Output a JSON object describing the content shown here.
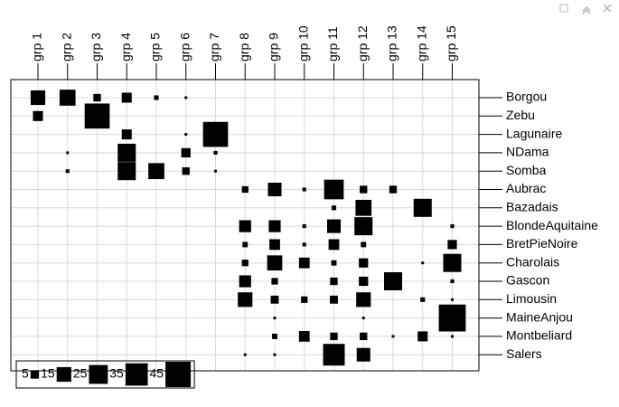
{
  "chart_data": {
    "type": "table_value",
    "columns": [
      "grp 1",
      "grp 2",
      "grp 3",
      "grp 4",
      "grp 5",
      "grp 6",
      "grp 7",
      "grp 8",
      "grp 9",
      "grp 10",
      "grp 11",
      "grp 12",
      "grp 13",
      "grp 14",
      "grp 15"
    ],
    "rows": [
      "Borgou",
      "Zebu",
      "Lagunaire",
      "NDama",
      "Somba",
      "Aubrac",
      "Bazadais",
      "BlondeAquitaine",
      "BretPieNoire",
      "Charolais",
      "Gascon",
      "Limousin",
      "MaineAnjou",
      "Montbeliard",
      "Salers"
    ],
    "values": [
      [
        15,
        18,
        4,
        7,
        1.5,
        0.5,
        null,
        null,
        null,
        null,
        null,
        null,
        null,
        null,
        null
      ],
      [
        7,
        null,
        44,
        null,
        null,
        null,
        null,
        null,
        null,
        null,
        null,
        null,
        null,
        null,
        null
      ],
      [
        null,
        null,
        null,
        7,
        null,
        0.5,
        44,
        null,
        null,
        null,
        null,
        null,
        null,
        null,
        null
      ],
      [
        null,
        0.5,
        null,
        23,
        null,
        6,
        1,
        null,
        null,
        null,
        null,
        null,
        null,
        null,
        null
      ],
      [
        null,
        1,
        null,
        23,
        18,
        4,
        0.5,
        null,
        null,
        null,
        null,
        null,
        null,
        null,
        null
      ],
      [
        null,
        null,
        null,
        null,
        null,
        null,
        null,
        3,
        13,
        1,
        27,
        4,
        4,
        null,
        null
      ],
      [
        null,
        null,
        null,
        null,
        null,
        null,
        null,
        null,
        null,
        null,
        1.5,
        18,
        null,
        23,
        null
      ],
      [
        null,
        null,
        null,
        null,
        null,
        null,
        null,
        10,
        10,
        1,
        13,
        23,
        null,
        null,
        1
      ],
      [
        null,
        null,
        null,
        null,
        null,
        null,
        null,
        2,
        8,
        1,
        8,
        2,
        null,
        null,
        6
      ],
      [
        null,
        null,
        null,
        null,
        null,
        null,
        null,
        3,
        16,
        8,
        2,
        6,
        null,
        0.5,
        23
      ],
      [
        null,
        null,
        null,
        null,
        null,
        null,
        null,
        10,
        3,
        null,
        4,
        6,
        23,
        null,
        1
      ],
      [
        null,
        null,
        null,
        null,
        null,
        null,
        null,
        15,
        4.5,
        3,
        4.5,
        15,
        null,
        1.5,
        0.5
      ],
      [
        null,
        null,
        null,
        null,
        null,
        null,
        null,
        null,
        0.5,
        null,
        null,
        0.5,
        null,
        null,
        51
      ],
      [
        null,
        null,
        null,
        null,
        null,
        null,
        null,
        null,
        2,
        8,
        4,
        4,
        0.5,
        7,
        0.5
      ],
      [
        null,
        null,
        null,
        null,
        null,
        null,
        null,
        0.5,
        0.5,
        null,
        33,
        13,
        null,
        null,
        null
      ]
    ],
    "legend_values": [
      5,
      15,
      25,
      35,
      45
    ],
    "color": "#000000",
    "grid": true
  }
}
